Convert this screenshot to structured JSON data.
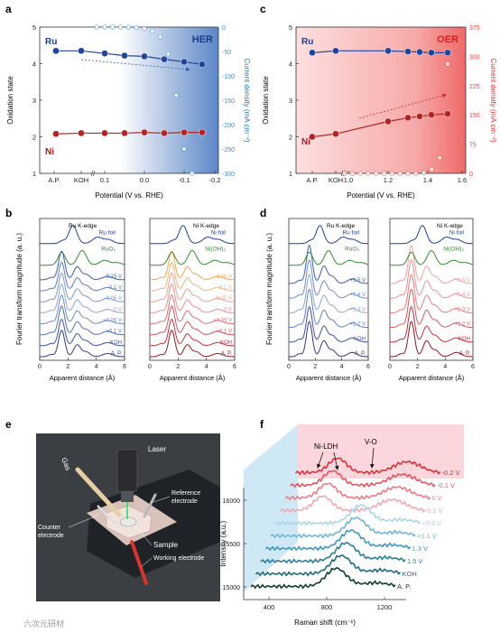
{
  "panels": {
    "a": {
      "letter": "a",
      "tag": "HER",
      "ylabel": "Oxidation state",
      "y2label": "Current density (mA cm⁻²)",
      "xlabel": "Potential (V vs. RHE)",
      "yticks": [
        "1",
        "2",
        "3",
        "4",
        "5"
      ],
      "y2ticks": [
        "0",
        "-50",
        "-100",
        "-150",
        "-200",
        "-250",
        "-300"
      ],
      "xticks": [
        "A.P.",
        "KOH",
        "0.1",
        "0.0",
        "-0.1",
        "-0.2"
      ],
      "ru": "Ru",
      "ni": "Ni"
    },
    "c": {
      "letter": "c",
      "tag": "OER",
      "ylabel": "Oxidation state",
      "y2label": "Current density (mA cm⁻²)",
      "xlabel": "Potential (V vs. RHE)",
      "yticks": [
        "1",
        "2",
        "3",
        "4",
        "5"
      ],
      "y2ticks": [
        "0",
        "75",
        "150",
        "225",
        "300",
        "375"
      ],
      "xticks": [
        "A.P.",
        "KOH",
        "1.0",
        "1.2",
        "1.4",
        "1.6"
      ],
      "ru": "Ru",
      "ni": "Ni"
    },
    "b": {
      "letter": "b",
      "ylabel": "Fourier transform magnitude (a. u.)",
      "xlabel": "Apparent distance (Å)",
      "xticks": [
        "0",
        "2",
        "4",
        "6"
      ],
      "left": {
        "edge": "Ru K-edge",
        "foil": "Ru foil",
        "oxide": "RuO₂",
        "labels": [
          "-0.15 V",
          "-0.1 V",
          "-0.05 V",
          "0 V",
          "+0.05 V",
          "+0.1 V",
          "KOH",
          "A. P."
        ]
      },
      "right": {
        "edge": "Ni K-edge",
        "foil": "Ni foil",
        "oxide": "Ni(OH)₂",
        "labels": [
          "-0.15 V",
          "-0.1 V",
          "-0.05 V",
          "0 V",
          "+0.05 V",
          "+0.1 V",
          "KOH",
          "A. P."
        ]
      }
    },
    "d": {
      "letter": "d",
      "ylabel": "Fourier transform magnitude (a. u.)",
      "xlabel": "Apparent distance (Å)",
      "xticks": [
        "0",
        "2",
        "4",
        "6"
      ],
      "left": {
        "edge": "Ru K-edge",
        "foil": "Ru foil",
        "oxide": "RuO₂",
        "labels": [
          "+1.5 V",
          "+1.4 V",
          "+1.3 V",
          "+1.2 V",
          "KOH",
          "A. P."
        ]
      },
      "right": {
        "edge": "Ni K-edge",
        "foil": "Ni foil",
        "oxide": "Ni(OH)₂",
        "labels": [
          "+1.5 V",
          "+1.4 V",
          "+1.3 V",
          "+1.2 V",
          "KOH",
          "A. P."
        ]
      }
    },
    "e": {
      "letter": "e",
      "gas": "Gas",
      "laser": "Laser",
      "reference": "Reference",
      "electrode": "electrode",
      "counter": "Counter",
      "sample": "Sample",
      "working": "Working electrode"
    },
    "f": {
      "letter": "f",
      "ylabel": "Intensity (a.u.)",
      "xlabel": "Raman shift (cm⁻¹)",
      "yticks": [
        "15000",
        "15500",
        "16000"
      ],
      "xticks": [
        "400",
        "800",
        "1200"
      ],
      "nildh": "Ni-LDH",
      "vo": "V-O",
      "labels": [
        "-0.2 V",
        "-0.1 V",
        "0 V",
        "0.1 V",
        "+0.6 V",
        "+1.1 V",
        "1.3 V",
        "1.5 V",
        "KOH",
        "A. P."
      ]
    }
  },
  "watermark": "六次元研材",
  "chart_data": [
    {
      "type": "line",
      "panel": "a",
      "x": [
        "A.P.",
        "KOH",
        "0.1",
        "0.05",
        "0.0",
        "-0.05",
        "-0.1",
        "-0.15"
      ],
      "series": [
        {
          "name": "Ru",
          "values": [
            4.35,
            4.35,
            4.28,
            4.22,
            4.2,
            4.12,
            4.05,
            3.98
          ]
        },
        {
          "name": "Ni",
          "values": [
            2.08,
            2.1,
            2.1,
            2.1,
            2.12,
            2.1,
            2.12,
            2.12
          ]
        }
      ],
      "ylim": [
        1,
        5
      ],
      "y2lim": [
        0,
        -300
      ],
      "current_density": {
        "x": [
          0.12,
          0.1,
          0.08,
          0.06,
          0.04,
          0.02,
          0.0,
          -0.02,
          -0.04,
          -0.06,
          -0.08,
          -0.1,
          -0.12
        ],
        "y": [
          0,
          0,
          0,
          0,
          0,
          -1,
          -3,
          -8,
          -20,
          -55,
          -140,
          -250,
          -300
        ]
      }
    },
    {
      "type": "line",
      "panel": "c",
      "x": [
        "A.P.",
        "KOH",
        "1.2",
        "1.3",
        "1.35",
        "1.4",
        "1.5"
      ],
      "series": [
        {
          "name": "Ru",
          "values": [
            4.3,
            4.35,
            4.35,
            4.33,
            4.32,
            4.3,
            4.3
          ]
        },
        {
          "name": "Ni",
          "values": [
            2.0,
            2.08,
            2.42,
            2.52,
            2.56,
            2.6,
            2.63
          ]
        }
      ],
      "ylim": [
        1,
        5
      ],
      "y2lim": [
        0,
        375
      ],
      "current_density": {
        "x": [
          0.98,
          1.02,
          1.06,
          1.1,
          1.14,
          1.18,
          1.22,
          1.26,
          1.3,
          1.34,
          1.38,
          1.42,
          1.46,
          1.5
        ],
        "y": [
          0,
          0,
          0,
          0,
          0,
          0,
          0,
          0,
          0,
          0,
          2,
          10,
          40,
          280
        ]
      }
    }
  ]
}
